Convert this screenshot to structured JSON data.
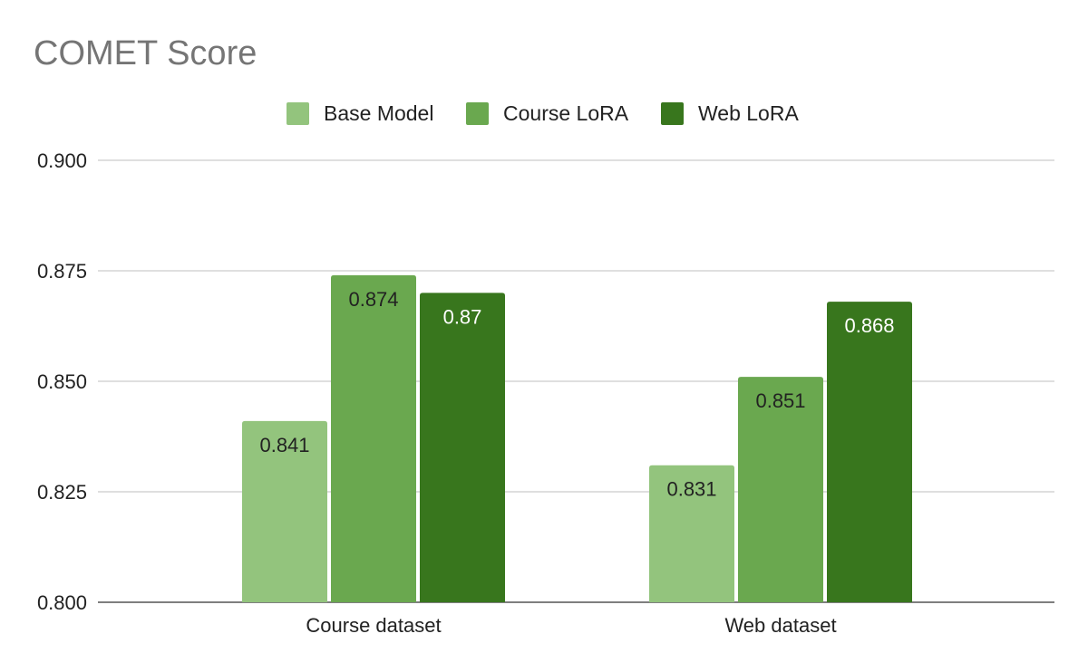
{
  "chart_data": {
    "type": "bar",
    "title": "COMET Score",
    "categories": [
      "Course dataset",
      "Web dataset"
    ],
    "series": [
      {
        "name": "Base Model",
        "values": [
          0.841,
          0.831
        ],
        "labels": [
          "0.841",
          "0.831"
        ],
        "color": "#93c47d",
        "label_color": "#222222"
      },
      {
        "name": "Course LoRA",
        "values": [
          0.874,
          0.851
        ],
        "labels": [
          "0.874",
          "0.851"
        ],
        "color": "#6aa84f",
        "label_color": "#222222"
      },
      {
        "name": "Web LoRA",
        "values": [
          0.87,
          0.868
        ],
        "labels": [
          "0.87",
          "0.868"
        ],
        "color": "#38761d",
        "label_color": "#ffffff"
      }
    ],
    "ylim": [
      0.8,
      0.9
    ],
    "yticks": [
      0.8,
      0.825,
      0.85,
      0.875,
      0.9
    ],
    "ytick_labels": [
      "0.800",
      "0.825",
      "0.850",
      "0.875",
      "0.900"
    ],
    "xlabel": "",
    "ylabel": "",
    "grid": true,
    "legend": "top-center"
  }
}
